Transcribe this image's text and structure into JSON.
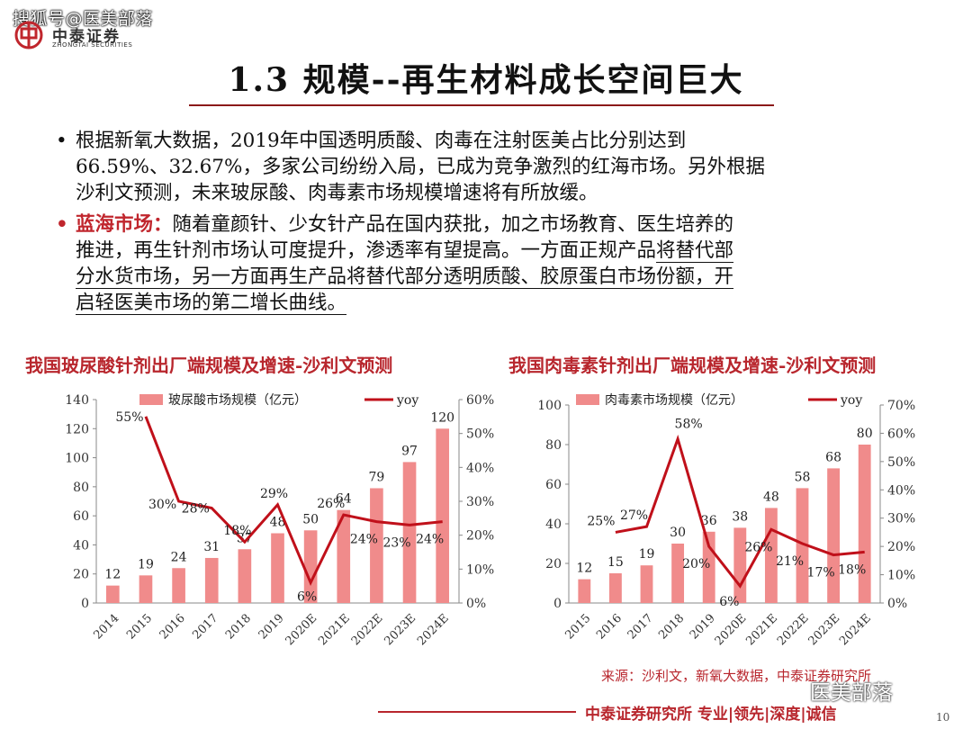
{
  "watermark": "搜狐号@医美部落",
  "logo": {
    "cn": "中泰证券",
    "en": "ZHONGTAI SECURITIES",
    "color": "#c0262d"
  },
  "title": "1.3 规模--再生材料成长空间巨大",
  "paragraphs": {
    "p1_lines": [
      "根据新氧大数据，2019年中国透明质酸、肉毒在注射医美占比分别达到",
      "66.59%、32.67%，多家公司纷纷入局，已成为竞争激烈的红海市场。另外根据",
      "沙利文预测，未来玻尿酸、肉毒素市场规模增速将有所放缓。"
    ],
    "p2_head": "蓝海市场：",
    "p2_line1": "随着童颜针、少女针产品在国内获批，加之市场教育、医生培养的",
    "p2_line2_a": "推进，再生针剂市场认可度提升，渗透率有望提高。一方面正规产品",
    "p2_line2_b": "将替代部",
    "p2_line3": "分水货市场，另一方面再生产品将替代部分透明质酸、胶原蛋白市场份额，开",
    "p2_line4": "启轻医美市场的第二增长曲线。"
  },
  "chart_data": [
    {
      "type": "bar",
      "title": "我国玻尿酸针剂出厂端规模及增速-沙利文预测",
      "categories": [
        "2014",
        "2015",
        "2016",
        "2017",
        "2018",
        "2019",
        "2020E",
        "2021E",
        "2022E",
        "2023E",
        "2024E"
      ],
      "series": [
        {
          "name": "玻尿酸市场规模（亿元）",
          "type": "bar",
          "axis": "left",
          "values": [
            12,
            19,
            24,
            31,
            37,
            48,
            50,
            64,
            79,
            97,
            120
          ]
        },
        {
          "name": "yoy",
          "type": "line",
          "axis": "right",
          "values": [
            null,
            55,
            30,
            28,
            18,
            29,
            6,
            26,
            24,
            23,
            24
          ]
        }
      ],
      "bar_labels": [
        "12",
        "19",
        "24",
        "31",
        "37",
        "48",
        "50",
        "64",
        "79",
        "97",
        "120"
      ],
      "yoy_labels": [
        "",
        "55%",
        "30%",
        "28%",
        "18%",
        "29%",
        "6%",
        "26%",
        "24%",
        "23%",
        "24%"
      ],
      "yticks": [
        "0",
        "20",
        "40",
        "60",
        "80",
        "100",
        "120",
        "140"
      ],
      "y2ticks": [
        "0%",
        "10%",
        "20%",
        "30%",
        "40%",
        "50%",
        "60%"
      ],
      "ylim": [
        0,
        140
      ],
      "y2lim": [
        0,
        60
      ],
      "legend_position": "top",
      "colors": {
        "bar": "#f08b8b",
        "line": "#c0101a"
      }
    },
    {
      "type": "bar",
      "title": "我国肉毒素针剂出厂端规模及增速-沙利文预测",
      "categories": [
        "2015",
        "2016",
        "2017",
        "2018",
        "2019",
        "2020E",
        "2021E",
        "2022E",
        "2023E",
        "2024E"
      ],
      "series": [
        {
          "name": "肉毒素市场规模（亿元）",
          "type": "bar",
          "axis": "left",
          "values": [
            12,
            15,
            19,
            30,
            36,
            38,
            48,
            58,
            68,
            80
          ]
        },
        {
          "name": "yoy",
          "type": "line",
          "axis": "right",
          "values": [
            null,
            25,
            27,
            58,
            20,
            6,
            26,
            21,
            17,
            18
          ]
        }
      ],
      "bar_labels": [
        "12",
        "15",
        "19",
        "30",
        "36",
        "38",
        "48",
        "58",
        "68",
        "80"
      ],
      "yoy_labels": [
        "",
        "25%",
        "27%",
        "58%",
        "20%",
        "6%",
        "26%",
        "21%",
        "17%",
        "18%"
      ],
      "yticks": [
        "0",
        "20",
        "40",
        "60",
        "80",
        "100"
      ],
      "y2ticks": [
        "0%",
        "10%",
        "20%",
        "30%",
        "40%",
        "50%",
        "60%",
        "70%"
      ],
      "ylim": [
        0,
        100
      ],
      "y2lim": [
        0,
        70
      ],
      "legend_position": "top",
      "colors": {
        "bar": "#f08b8b",
        "line": "#c0101a"
      }
    }
  ],
  "source": "来源：沙利文，新氧大数据，中泰证券研究所",
  "wechat": "医美部落",
  "footer": "中泰证券研究所 专业|领先|深度|诚信",
  "page_number": "10"
}
